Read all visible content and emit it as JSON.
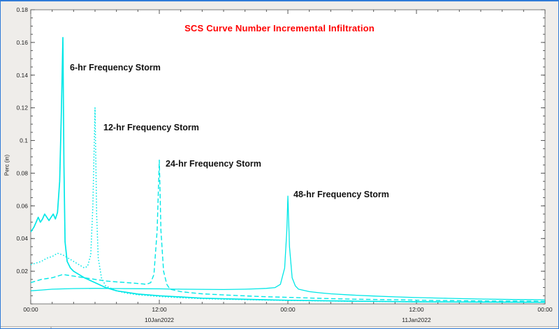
{
  "window": {
    "background": "#EFEDEA",
    "border_color": "#2F7BD8"
  },
  "chart_data": {
    "type": "line",
    "title": "SCS Curve Number Incremental Infiltration",
    "title_color": "#FF0000",
    "ylabel": "Perc (in)",
    "line_color": "#00E7E7",
    "xlim_hours": [
      0,
      48
    ],
    "ylim": [
      0,
      0.18
    ],
    "grid": false,
    "x_ticks": [
      {
        "t": 0,
        "label": "00:00"
      },
      {
        "t": 12,
        "label": "12:00"
      },
      {
        "t": 24,
        "label": "00:00"
      },
      {
        "t": 36,
        "label": "12:00"
      },
      {
        "t": 48,
        "label": "00:00"
      }
    ],
    "x_minor_tick_step_hours": 2,
    "x_date_labels": [
      {
        "t": 12,
        "label": "10Jan2022"
      },
      {
        "t": 36,
        "label": "11Jan2022"
      }
    ],
    "y_ticks": [
      {
        "v": 0.18,
        "label": "0.18"
      },
      {
        "v": 0.16,
        "label": "0.16"
      },
      {
        "v": 0.14,
        "label": "0.14"
      },
      {
        "v": 0.12,
        "label": "0.12"
      },
      {
        "v": 0.1,
        "label": "0.1"
      },
      {
        "v": 0.08,
        "label": "0.08"
      },
      {
        "v": 0.06,
        "label": "0.06"
      },
      {
        "v": 0.04,
        "label": "0.04"
      },
      {
        "v": 0.02,
        "label": "0.02"
      }
    ],
    "y_minor_tick_step": 0.005,
    "annotations": [
      {
        "text": "6-hr Frequency Storm"
      },
      {
        "text": "12-hr Frequency Storm"
      },
      {
        "text": "24-hr Frequency Storm"
      },
      {
        "text": "48-hr Frequency Storm"
      }
    ],
    "series": [
      {
        "name": "6-hr Frequency Storm",
        "style": "solid",
        "width": 1.7,
        "peak": {
          "t": 3,
          "v": 0.163
        },
        "points": [
          [
            0,
            0.044
          ],
          [
            0.3,
            0.047
          ],
          [
            0.5,
            0.05
          ],
          [
            0.7,
            0.053
          ],
          [
            0.9,
            0.05
          ],
          [
            1.1,
            0.052
          ],
          [
            1.3,
            0.055
          ],
          [
            1.5,
            0.053
          ],
          [
            1.7,
            0.051
          ],
          [
            1.9,
            0.053
          ],
          [
            2.1,
            0.055
          ],
          [
            2.3,
            0.052
          ],
          [
            2.5,
            0.056
          ],
          [
            2.7,
            0.075
          ],
          [
            2.85,
            0.115
          ],
          [
            3.0,
            0.163
          ],
          [
            3.1,
            0.085
          ],
          [
            3.2,
            0.038
          ],
          [
            3.4,
            0.026
          ],
          [
            3.7,
            0.022
          ],
          [
            4,
            0.02
          ],
          [
            4.5,
            0.018
          ],
          [
            5,
            0.016
          ],
          [
            6,
            0.013
          ],
          [
            7,
            0.01
          ],
          [
            8,
            0.008
          ],
          [
            10,
            0.006
          ],
          [
            12,
            0.005
          ],
          [
            16,
            0.0035
          ],
          [
            20,
            0.0028
          ],
          [
            24,
            0.0022
          ],
          [
            30,
            0.0017
          ],
          [
            36,
            0.0013
          ],
          [
            42,
            0.0011
          ],
          [
            48,
            0.001
          ]
        ]
      },
      {
        "name": "12-hr Frequency Storm",
        "style": "dotted",
        "width": 1.5,
        "peak": {
          "t": 6,
          "v": 0.12
        },
        "points": [
          [
            0,
            0.024
          ],
          [
            0.5,
            0.025
          ],
          [
            1,
            0.026
          ],
          [
            1.5,
            0.028
          ],
          [
            2,
            0.029
          ],
          [
            2.5,
            0.031
          ],
          [
            3,
            0.03
          ],
          [
            3.5,
            0.028
          ],
          [
            4,
            0.026
          ],
          [
            4.5,
            0.024
          ],
          [
            5,
            0.022
          ],
          [
            5.3,
            0.023
          ],
          [
            5.6,
            0.03
          ],
          [
            5.8,
            0.06
          ],
          [
            6,
            0.12
          ],
          [
            6.15,
            0.055
          ],
          [
            6.3,
            0.028
          ],
          [
            6.6,
            0.016
          ],
          [
            7,
            0.011
          ],
          [
            8,
            0.008
          ],
          [
            9,
            0.0065
          ],
          [
            10,
            0.0056
          ],
          [
            12,
            0.0045
          ],
          [
            14,
            0.0038
          ],
          [
            16,
            0.0032
          ],
          [
            20,
            0.0026
          ],
          [
            24,
            0.0021
          ],
          [
            30,
            0.0016
          ],
          [
            36,
            0.0013
          ],
          [
            48,
            0.001
          ]
        ]
      },
      {
        "name": "24-hr Frequency Storm",
        "style": "dashed",
        "width": 1.4,
        "peak": {
          "t": 12,
          "v": 0.088
        },
        "points": [
          [
            0,
            0.013
          ],
          [
            1,
            0.015
          ],
          [
            2,
            0.016
          ],
          [
            3,
            0.018
          ],
          [
            4,
            0.017
          ],
          [
            5,
            0.016
          ],
          [
            6,
            0.015
          ],
          [
            7,
            0.014
          ],
          [
            8,
            0.0135
          ],
          [
            9,
            0.013
          ],
          [
            10,
            0.0125
          ],
          [
            10.8,
            0.012
          ],
          [
            11.2,
            0.013
          ],
          [
            11.5,
            0.018
          ],
          [
            11.8,
            0.045
          ],
          [
            12,
            0.088
          ],
          [
            12.15,
            0.045
          ],
          [
            12.4,
            0.02
          ],
          [
            12.7,
            0.012
          ],
          [
            13,
            0.009
          ],
          [
            14,
            0.0075
          ],
          [
            15,
            0.0068
          ],
          [
            16,
            0.0062
          ],
          [
            18,
            0.0055
          ],
          [
            20,
            0.0049
          ],
          [
            22,
            0.0044
          ],
          [
            24,
            0.004
          ],
          [
            27,
            0.0034
          ],
          [
            30,
            0.0029
          ],
          [
            34,
            0.0025
          ],
          [
            38,
            0.0021
          ],
          [
            43,
            0.0018
          ],
          [
            48,
            0.0016
          ]
        ]
      },
      {
        "name": "48-hr Frequency Storm",
        "style": "solid",
        "width": 1.3,
        "peak": {
          "t": 24,
          "v": 0.066
        },
        "points": [
          [
            0,
            0.008
          ],
          [
            1,
            0.0085
          ],
          [
            2,
            0.009
          ],
          [
            4,
            0.0094
          ],
          [
            6,
            0.0095
          ],
          [
            8,
            0.0094
          ],
          [
            10,
            0.0093
          ],
          [
            12,
            0.0092
          ],
          [
            14,
            0.009
          ],
          [
            16,
            0.0089
          ],
          [
            18,
            0.0088
          ],
          [
            20,
            0.009
          ],
          [
            21,
            0.0092
          ],
          [
            22,
            0.0095
          ],
          [
            22.8,
            0.01
          ],
          [
            23.3,
            0.012
          ],
          [
            23.7,
            0.022
          ],
          [
            23.9,
            0.045
          ],
          [
            24,
            0.066
          ],
          [
            24.15,
            0.035
          ],
          [
            24.4,
            0.016
          ],
          [
            24.7,
            0.011
          ],
          [
            25,
            0.009
          ],
          [
            26,
            0.0075
          ],
          [
            27,
            0.0068
          ],
          [
            28,
            0.0062
          ],
          [
            30,
            0.0054
          ],
          [
            32,
            0.0048
          ],
          [
            34,
            0.0043
          ],
          [
            36,
            0.0039
          ],
          [
            39,
            0.0034
          ],
          [
            42,
            0.003
          ],
          [
            45,
            0.0027
          ],
          [
            48,
            0.0025
          ]
        ]
      }
    ]
  }
}
